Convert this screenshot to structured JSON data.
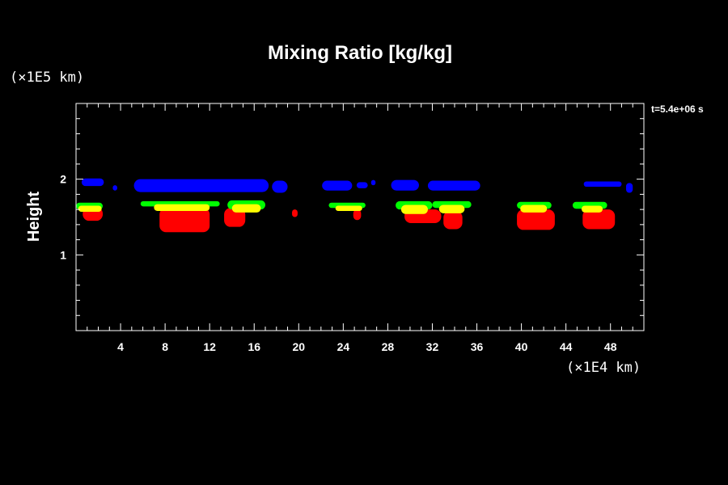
{
  "chart_data": {
    "type": "heatmap",
    "title": "Mixing Ratio [kg/kg]",
    "ylabel": "Height",
    "y_unit": "(×1E5 km)",
    "x_unit": "(×1E4 km)",
    "time_label": "t=5.4e+06 s",
    "x_range": [
      0,
      51
    ],
    "y_range": [
      0,
      3
    ],
    "x_ticks": [
      4,
      8,
      12,
      16,
      20,
      24,
      28,
      32,
      36,
      40,
      44,
      48
    ],
    "y_ticks": [
      1,
      2
    ],
    "colors": {
      "blue": "#0000ff",
      "green": "#00ff00",
      "yellow": "#ffff00",
      "red": "#ff0000"
    },
    "blobs": [
      {
        "color": "blue",
        "x0": 0.5,
        "x1": 2.5,
        "y0": 1.91,
        "y1": 2.01
      },
      {
        "color": "blue",
        "x0": 3.3,
        "x1": 3.7,
        "y0": 1.85,
        "y1": 1.92
      },
      {
        "color": "blue",
        "x0": 5.2,
        "x1": 17.3,
        "y0": 1.83,
        "y1": 2.0
      },
      {
        "color": "blue",
        "x0": 17.6,
        "x1": 19.0,
        "y0": 1.82,
        "y1": 1.98
      },
      {
        "color": "blue",
        "x0": 22.1,
        "x1": 24.8,
        "y0": 1.85,
        "y1": 1.98
      },
      {
        "color": "blue",
        "x0": 25.2,
        "x1": 26.2,
        "y0": 1.88,
        "y1": 1.96
      },
      {
        "color": "blue",
        "x0": 26.5,
        "x1": 26.9,
        "y0": 1.92,
        "y1": 1.99
      },
      {
        "color": "blue",
        "x0": 28.3,
        "x1": 30.8,
        "y0": 1.85,
        "y1": 1.99
      },
      {
        "color": "blue",
        "x0": 31.6,
        "x1": 36.3,
        "y0": 1.85,
        "y1": 1.98
      },
      {
        "color": "blue",
        "x0": 45.6,
        "x1": 49.0,
        "y0": 1.9,
        "y1": 1.97
      },
      {
        "color": "blue",
        "x0": 49.4,
        "x1": 50.0,
        "y0": 1.82,
        "y1": 1.95
      },
      {
        "color": "red",
        "x0": 0.6,
        "x1": 2.4,
        "y0": 1.45,
        "y1": 1.63
      },
      {
        "color": "green",
        "x0": 0.0,
        "x1": 2.4,
        "y0": 1.6,
        "y1": 1.69
      },
      {
        "color": "yellow",
        "x0": 0.2,
        "x1": 2.3,
        "y0": 1.57,
        "y1": 1.65
      },
      {
        "color": "red",
        "x0": 7.5,
        "x1": 12.0,
        "y0": 1.3,
        "y1": 1.62
      },
      {
        "color": "green",
        "x0": 5.8,
        "x1": 12.9,
        "y0": 1.64,
        "y1": 1.71
      },
      {
        "color": "yellow",
        "x0": 7.0,
        "x1": 12.0,
        "y0": 1.58,
        "y1": 1.67
      },
      {
        "color": "red",
        "x0": 13.3,
        "x1": 15.2,
        "y0": 1.37,
        "y1": 1.62
      },
      {
        "color": "green",
        "x0": 13.6,
        "x1": 17.0,
        "y0": 1.6,
        "y1": 1.72
      },
      {
        "color": "yellow",
        "x0": 14.0,
        "x1": 16.6,
        "y0": 1.56,
        "y1": 1.67
      },
      {
        "color": "red",
        "x0": 19.4,
        "x1": 19.9,
        "y0": 1.5,
        "y1": 1.6
      },
      {
        "color": "green",
        "x0": 22.7,
        "x1": 26.0,
        "y0": 1.62,
        "y1": 1.69
      },
      {
        "color": "yellow",
        "x0": 23.3,
        "x1": 25.7,
        "y0": 1.58,
        "y1": 1.65
      },
      {
        "color": "red",
        "x0": 24.9,
        "x1": 25.6,
        "y0": 1.46,
        "y1": 1.6
      },
      {
        "color": "green",
        "x0": 28.7,
        "x1": 32.0,
        "y0": 1.6,
        "y1": 1.71
      },
      {
        "color": "yellow",
        "x0": 29.2,
        "x1": 31.6,
        "y0": 1.54,
        "y1": 1.66
      },
      {
        "color": "green",
        "x0": 32.0,
        "x1": 35.5,
        "y0": 1.62,
        "y1": 1.71
      },
      {
        "color": "yellow",
        "x0": 32.6,
        "x1": 34.9,
        "y0": 1.55,
        "y1": 1.66
      },
      {
        "color": "red",
        "x0": 29.5,
        "x1": 32.8,
        "y0": 1.42,
        "y1": 1.6
      },
      {
        "color": "red",
        "x0": 33.0,
        "x1": 34.7,
        "y0": 1.34,
        "y1": 1.58
      },
      {
        "color": "red",
        "x0": 39.6,
        "x1": 43.0,
        "y0": 1.33,
        "y1": 1.6
      },
      {
        "color": "green",
        "x0": 39.6,
        "x1": 42.7,
        "y0": 1.61,
        "y1": 1.7
      },
      {
        "color": "yellow",
        "x0": 39.9,
        "x1": 42.3,
        "y0": 1.56,
        "y1": 1.66
      },
      {
        "color": "red",
        "x0": 45.5,
        "x1": 48.4,
        "y0": 1.34,
        "y1": 1.6
      },
      {
        "color": "green",
        "x0": 44.6,
        "x1": 47.7,
        "y0": 1.61,
        "y1": 1.7
      },
      {
        "color": "yellow",
        "x0": 45.4,
        "x1": 47.3,
        "y0": 1.56,
        "y1": 1.65
      }
    ]
  }
}
